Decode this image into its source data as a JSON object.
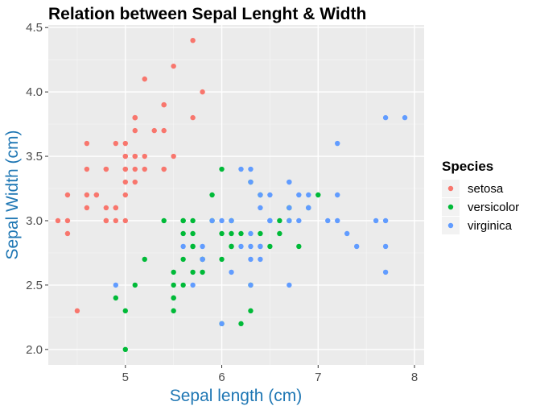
{
  "chart_data": {
    "type": "scatter",
    "title": "Relation between Sepal Lenght & Width",
    "xlabel": "Sepal length (cm)",
    "ylabel": "Sepal Width (cm)",
    "xlim": [
      4.2,
      8.1
    ],
    "ylim": [
      1.88,
      4.52
    ],
    "x_ticks": [
      5,
      6,
      7,
      8
    ],
    "y_ticks": [
      2.0,
      2.5,
      3.0,
      3.5,
      4.0,
      4.5
    ],
    "x_tick_labels": [
      "5",
      "6",
      "7",
      "8"
    ],
    "y_tick_labels": [
      "2.0",
      "2.5",
      "3.0",
      "3.5",
      "4.0",
      "4.5"
    ],
    "grid": true,
    "legend": {
      "title": "Species",
      "position": "right"
    },
    "series": [
      {
        "name": "setosa",
        "color": "#F8766D",
        "points": [
          [
            5.1,
            3.5
          ],
          [
            4.9,
            3.0
          ],
          [
            4.7,
            3.2
          ],
          [
            4.6,
            3.1
          ],
          [
            5.0,
            3.6
          ],
          [
            5.4,
            3.9
          ],
          [
            4.6,
            3.4
          ],
          [
            5.0,
            3.4
          ],
          [
            4.4,
            2.9
          ],
          [
            4.9,
            3.1
          ],
          [
            5.4,
            3.7
          ],
          [
            4.8,
            3.4
          ],
          [
            4.8,
            3.0
          ],
          [
            4.3,
            3.0
          ],
          [
            5.8,
            4.0
          ],
          [
            5.7,
            4.4
          ],
          [
            5.4,
            3.9
          ],
          [
            5.1,
            3.5
          ],
          [
            5.7,
            3.8
          ],
          [
            5.1,
            3.8
          ],
          [
            5.4,
            3.4
          ],
          [
            5.1,
            3.7
          ],
          [
            4.6,
            3.6
          ],
          [
            5.1,
            3.3
          ],
          [
            4.8,
            3.4
          ],
          [
            5.0,
            3.0
          ],
          [
            5.0,
            3.4
          ],
          [
            5.2,
            3.5
          ],
          [
            5.2,
            3.4
          ],
          [
            4.7,
            3.2
          ],
          [
            4.8,
            3.1
          ],
          [
            5.4,
            3.4
          ],
          [
            5.2,
            4.1
          ],
          [
            5.5,
            4.2
          ],
          [
            4.9,
            3.1
          ],
          [
            5.0,
            3.2
          ],
          [
            5.5,
            3.5
          ],
          [
            4.9,
            3.6
          ],
          [
            4.4,
            3.0
          ],
          [
            5.1,
            3.4
          ],
          [
            5.0,
            3.5
          ],
          [
            4.5,
            2.3
          ],
          [
            4.4,
            3.2
          ],
          [
            5.0,
            3.5
          ],
          [
            5.1,
            3.8
          ],
          [
            4.8,
            3.0
          ],
          [
            5.1,
            3.8
          ],
          [
            4.6,
            3.2
          ],
          [
            5.3,
            3.7
          ],
          [
            5.0,
            3.3
          ]
        ]
      },
      {
        "name": "versicolor",
        "color": "#00BA38",
        "points": [
          [
            7.0,
            3.2
          ],
          [
            6.4,
            3.2
          ],
          [
            6.9,
            3.1
          ],
          [
            5.5,
            2.3
          ],
          [
            6.5,
            2.8
          ],
          [
            5.7,
            2.8
          ],
          [
            6.3,
            3.3
          ],
          [
            4.9,
            2.4
          ],
          [
            6.6,
            2.9
          ],
          [
            5.2,
            2.7
          ],
          [
            5.0,
            2.0
          ],
          [
            5.9,
            3.0
          ],
          [
            6.0,
            2.2
          ],
          [
            6.1,
            2.9
          ],
          [
            5.6,
            2.9
          ],
          [
            6.7,
            3.1
          ],
          [
            5.6,
            3.0
          ],
          [
            5.8,
            2.7
          ],
          [
            6.2,
            2.2
          ],
          [
            5.6,
            2.5
          ],
          [
            5.9,
            3.2
          ],
          [
            6.1,
            2.8
          ],
          [
            6.3,
            2.5
          ],
          [
            6.1,
            2.8
          ],
          [
            6.4,
            2.9
          ],
          [
            6.6,
            3.0
          ],
          [
            6.8,
            2.8
          ],
          [
            6.7,
            3.0
          ],
          [
            6.0,
            2.9
          ],
          [
            5.7,
            2.6
          ],
          [
            5.5,
            2.4
          ],
          [
            5.5,
            2.4
          ],
          [
            5.8,
            2.7
          ],
          [
            6.0,
            2.7
          ],
          [
            5.4,
            3.0
          ],
          [
            6.0,
            3.4
          ],
          [
            6.7,
            3.1
          ],
          [
            6.3,
            2.3
          ],
          [
            5.6,
            3.0
          ],
          [
            5.5,
            2.5
          ],
          [
            5.5,
            2.6
          ],
          [
            6.1,
            3.0
          ],
          [
            5.8,
            2.6
          ],
          [
            5.0,
            2.3
          ],
          [
            5.6,
            2.7
          ],
          [
            5.7,
            3.0
          ],
          [
            5.7,
            2.9
          ],
          [
            6.2,
            2.9
          ],
          [
            5.1,
            2.5
          ],
          [
            5.7,
            2.8
          ]
        ]
      },
      {
        "name": "virginica",
        "color": "#619CFF",
        "points": [
          [
            6.3,
            3.3
          ],
          [
            5.8,
            2.7
          ],
          [
            7.1,
            3.0
          ],
          [
            6.3,
            2.9
          ],
          [
            6.5,
            3.0
          ],
          [
            7.6,
            3.0
          ],
          [
            4.9,
            2.5
          ],
          [
            7.3,
            2.9
          ],
          [
            6.7,
            2.5
          ],
          [
            7.2,
            3.6
          ],
          [
            6.5,
            3.2
          ],
          [
            6.4,
            2.7
          ],
          [
            6.8,
            3.0
          ],
          [
            5.7,
            2.5
          ],
          [
            5.8,
            2.8
          ],
          [
            6.4,
            3.2
          ],
          [
            6.5,
            3.0
          ],
          [
            7.7,
            3.8
          ],
          [
            7.7,
            2.6
          ],
          [
            6.0,
            2.2
          ],
          [
            6.9,
            3.2
          ],
          [
            5.6,
            2.8
          ],
          [
            7.7,
            2.8
          ],
          [
            6.3,
            2.7
          ],
          [
            6.7,
            3.3
          ],
          [
            7.2,
            3.2
          ],
          [
            6.2,
            2.8
          ],
          [
            6.1,
            3.0
          ],
          [
            6.4,
            2.8
          ],
          [
            7.2,
            3.0
          ],
          [
            7.4,
            2.8
          ],
          [
            7.9,
            3.8
          ],
          [
            6.4,
            2.8
          ],
          [
            6.3,
            2.8
          ],
          [
            6.1,
            2.6
          ],
          [
            7.7,
            3.0
          ],
          [
            6.3,
            3.4
          ],
          [
            6.4,
            3.1
          ],
          [
            6.0,
            3.0
          ],
          [
            6.9,
            3.1
          ],
          [
            6.7,
            3.1
          ],
          [
            6.9,
            3.1
          ],
          [
            5.8,
            2.7
          ],
          [
            6.8,
            3.2
          ],
          [
            6.7,
            3.3
          ],
          [
            6.7,
            3.0
          ],
          [
            6.3,
            2.5
          ],
          [
            6.5,
            3.0
          ],
          [
            6.2,
            3.4
          ],
          [
            5.9,
            3.0
          ]
        ]
      }
    ]
  }
}
